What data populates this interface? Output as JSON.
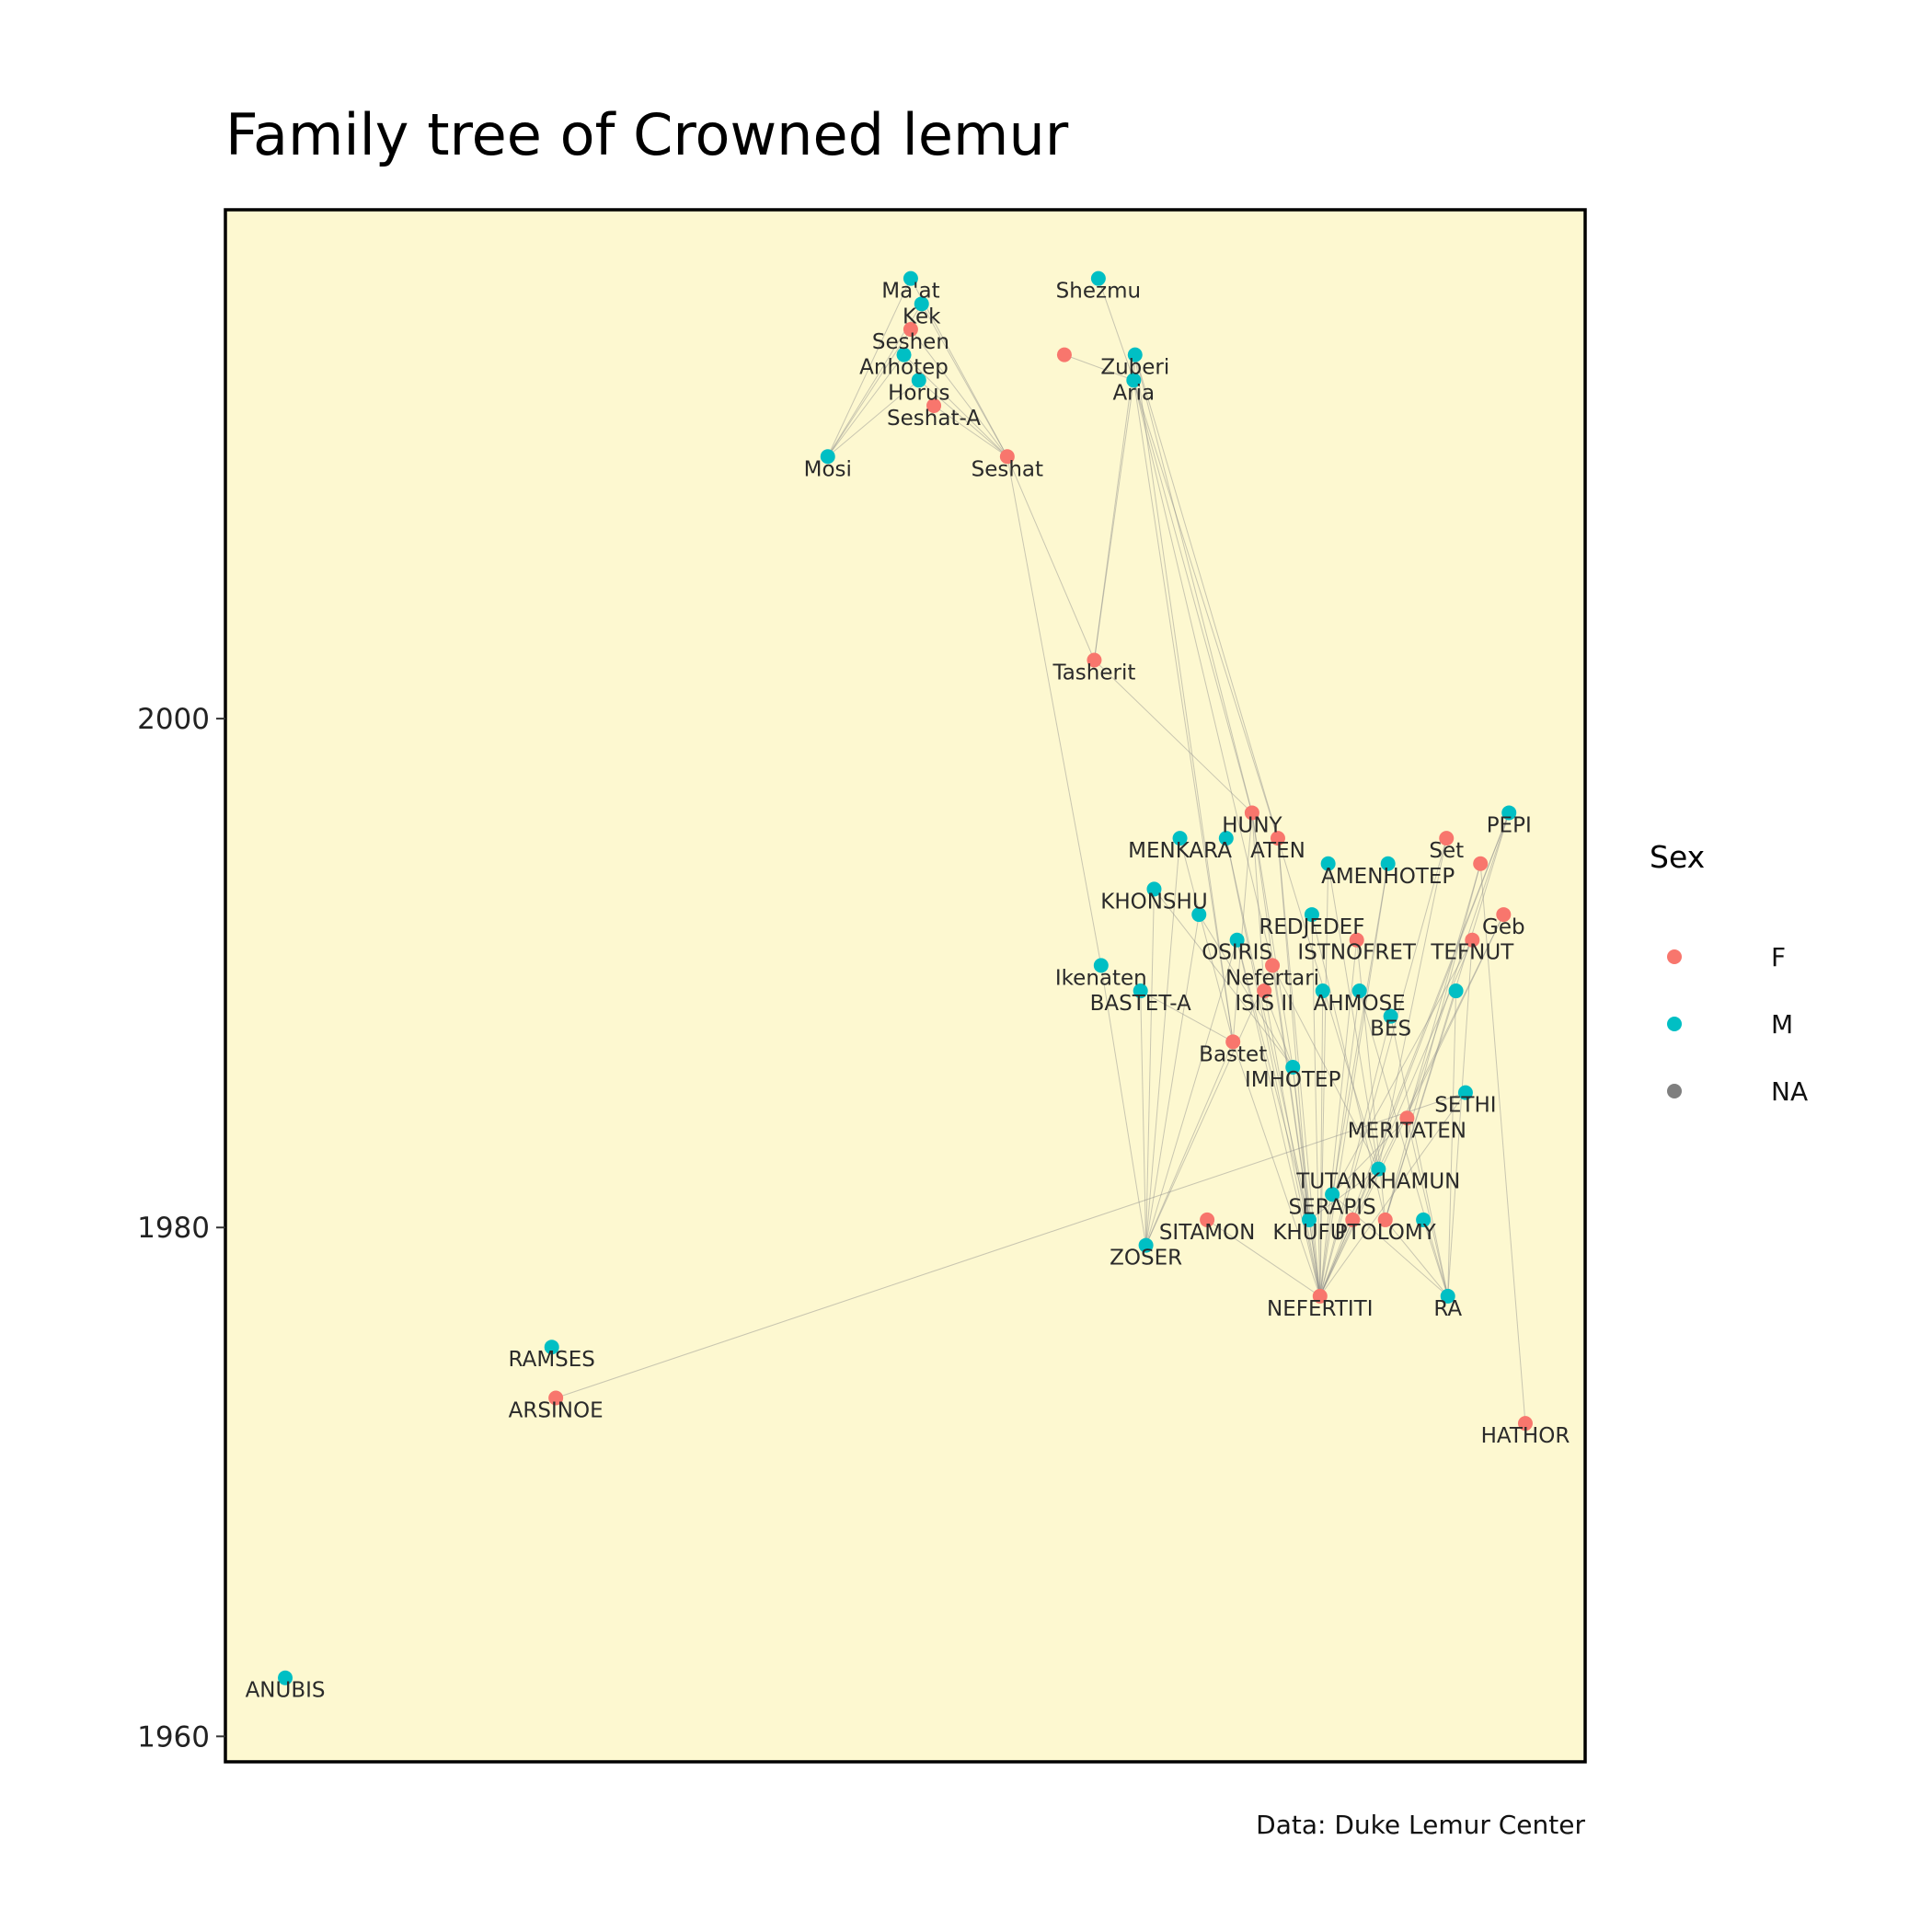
{
  "chart_data": {
    "type": "scatter",
    "title": "Family tree of Crowned lemur",
    "caption": "Data: Duke Lemur Center",
    "ylim": [
      1959,
      2020
    ],
    "xlim": [
      0,
      1
    ],
    "y_ticks": [
      1960,
      1980,
      2000
    ],
    "background": "#fdf8d0",
    "legend": {
      "title": "Sex",
      "placement": "right",
      "entries": [
        {
          "label": "F",
          "color": "#f8766d"
        },
        {
          "label": "M",
          "color": "#00bfc4"
        },
        {
          "label": "NA",
          "color": "#7f7f7f"
        }
      ]
    },
    "nodes": [
      {
        "name": "Ma'at",
        "sex": "M",
        "x": 0.504,
        "y": 2017.3
      },
      {
        "name": "Kek",
        "sex": "M",
        "x": 0.512,
        "y": 2016.3
      },
      {
        "name": "Seshen",
        "sex": "F",
        "x": 0.504,
        "y": 2015.3
      },
      {
        "name": "Anhotep",
        "sex": "M",
        "x": 0.499,
        "y": 2014.3
      },
      {
        "name": "Horus",
        "sex": "M",
        "x": 0.51,
        "y": 2013.3
      },
      {
        "name": "Seshat-A",
        "sex": "F",
        "x": 0.521,
        "y": 2012.3
      },
      {
        "name": "Mosi",
        "sex": "M",
        "x": 0.443,
        "y": 2010.3
      },
      {
        "name": "Seshat",
        "sex": "F",
        "x": 0.575,
        "y": 2010.3
      },
      {
        "name": "Shezmu",
        "sex": "M",
        "x": 0.642,
        "y": 2017.3
      },
      {
        "name": "",
        "sex": "F",
        "x": 0.617,
        "y": 2014.3
      },
      {
        "name": "Zuberi",
        "sex": "M",
        "x": 0.669,
        "y": 2014.3
      },
      {
        "name": "Aria",
        "sex": "M",
        "x": 0.668,
        "y": 2013.3
      },
      {
        "name": "Tasherit",
        "sex": "F",
        "x": 0.639,
        "y": 2002.3
      },
      {
        "name": "HUNY",
        "sex": "F",
        "x": 0.755,
        "y": 1996.3
      },
      {
        "name": "MENKARA",
        "sex": "M",
        "x": 0.702,
        "y": 1995.3
      },
      {
        "name": "ATEN",
        "sex": "F",
        "x": 0.774,
        "y": 1995.3
      },
      {
        "name": "",
        "sex": "M",
        "x": 0.736,
        "y": 1995.3
      },
      {
        "name": "PEPI",
        "sex": "M",
        "x": 0.944,
        "y": 1996.3
      },
      {
        "name": "Set",
        "sex": "F",
        "x": 0.898,
        "y": 1995.3
      },
      {
        "name": "",
        "sex": "F",
        "x": 0.923,
        "y": 1994.3
      },
      {
        "name": "AMENHOTEP",
        "sex": "M",
        "x": 0.855,
        "y": 1994.3
      },
      {
        "name": "",
        "sex": "M",
        "x": 0.811,
        "y": 1994.3
      },
      {
        "name": "KHONSHU",
        "sex": "M",
        "x": 0.683,
        "y": 1993.3
      },
      {
        "name": "",
        "sex": "M",
        "x": 0.716,
        "y": 1992.3
      },
      {
        "name": "REDJEDEF",
        "sex": "M",
        "x": 0.799,
        "y": 1992.3
      },
      {
        "name": "Geb",
        "sex": "F",
        "x": 0.94,
        "y": 1992.3
      },
      {
        "name": "OSIRIS",
        "sex": "M",
        "x": 0.744,
        "y": 1991.3
      },
      {
        "name": "ISTNOFRET",
        "sex": "F",
        "x": 0.832,
        "y": 1991.3
      },
      {
        "name": "TEFNUT",
        "sex": "F",
        "x": 0.917,
        "y": 1991.3
      },
      {
        "name": "Nefertari",
        "sex": "F",
        "x": 0.77,
        "y": 1990.3
      },
      {
        "name": "Ikenaten",
        "sex": "M",
        "x": 0.644,
        "y": 1990.3
      },
      {
        "name": "BASTET-A",
        "sex": "M",
        "x": 0.673,
        "y": 1989.3
      },
      {
        "name": "ISIS II",
        "sex": "F",
        "x": 0.764,
        "y": 1989.3
      },
      {
        "name": "AHMOSE",
        "sex": "M",
        "x": 0.834,
        "y": 1989.3
      },
      {
        "name": "",
        "sex": "M",
        "x": 0.807,
        "y": 1989.3
      },
      {
        "name": "",
        "sex": "M",
        "x": 0.905,
        "y": 1989.3
      },
      {
        "name": "BES",
        "sex": "M",
        "x": 0.857,
        "y": 1988.3
      },
      {
        "name": "Bastet",
        "sex": "F",
        "x": 0.741,
        "y": 1987.3
      },
      {
        "name": "IMHOTEP",
        "sex": "M",
        "x": 0.785,
        "y": 1986.3
      },
      {
        "name": "SETHI",
        "sex": "M",
        "x": 0.912,
        "y": 1985.3
      },
      {
        "name": "MERITATEN",
        "sex": "F",
        "x": 0.869,
        "y": 1984.3
      },
      {
        "name": "TUTANKHAMUN",
        "sex": "M",
        "x": 0.848,
        "y": 1982.3
      },
      {
        "name": "SERAPIS",
        "sex": "M",
        "x": 0.814,
        "y": 1981.3
      },
      {
        "name": "SITAMON",
        "sex": "F",
        "x": 0.722,
        "y": 1980.3
      },
      {
        "name": "KHUFU",
        "sex": "M",
        "x": 0.797,
        "y": 1980.3
      },
      {
        "name": "",
        "sex": "F",
        "x": 0.829,
        "y": 1980.3
      },
      {
        "name": "PTOLOMY",
        "sex": "F",
        "x": 0.853,
        "y": 1980.3
      },
      {
        "name": "",
        "sex": "M",
        "x": 0.881,
        "y": 1980.3
      },
      {
        "name": "ZOSER",
        "sex": "M",
        "x": 0.677,
        "y": 1979.3
      },
      {
        "name": "NEFERTITI",
        "sex": "F",
        "x": 0.805,
        "y": 1977.3
      },
      {
        "name": "RA",
        "sex": "M",
        "x": 0.899,
        "y": 1977.3
      },
      {
        "name": "RAMSES",
        "sex": "M",
        "x": 0.24,
        "y": 1975.3
      },
      {
        "name": "ARSINOE",
        "sex": "F",
        "x": 0.243,
        "y": 1973.3
      },
      {
        "name": "HATHOR",
        "sex": "F",
        "x": 0.956,
        "y": 1972.3
      },
      {
        "name": "ANUBIS",
        "sex": "M",
        "x": 0.044,
        "y": 1962.3
      }
    ],
    "edges": [
      [
        0,
        6
      ],
      [
        1,
        6
      ],
      [
        2,
        6
      ],
      [
        3,
        6
      ],
      [
        4,
        6
      ],
      [
        0,
        7
      ],
      [
        1,
        7
      ],
      [
        2,
        7
      ],
      [
        3,
        7
      ],
      [
        5,
        7
      ],
      [
        4,
        7
      ],
      [
        8,
        11
      ],
      [
        10,
        11
      ],
      [
        9,
        11
      ],
      [
        11,
        12
      ],
      [
        10,
        12
      ],
      [
        7,
        12
      ],
      [
        7,
        30
      ],
      [
        10,
        13
      ],
      [
        11,
        13
      ],
      [
        10,
        15
      ],
      [
        11,
        15
      ],
      [
        10,
        37
      ],
      [
        11,
        37
      ],
      [
        11,
        29
      ],
      [
        12,
        13
      ],
      [
        13,
        37
      ],
      [
        13,
        38
      ],
      [
        13,
        32
      ],
      [
        14,
        48
      ],
      [
        14,
        37
      ],
      [
        22,
        48
      ],
      [
        22,
        38
      ],
      [
        16,
        49
      ],
      [
        16,
        44
      ],
      [
        15,
        49
      ],
      [
        15,
        41
      ],
      [
        17,
        49
      ],
      [
        17,
        45
      ],
      [
        17,
        40
      ],
      [
        17,
        46
      ],
      [
        18,
        49
      ],
      [
        18,
        41
      ],
      [
        19,
        40
      ],
      [
        19,
        46
      ],
      [
        20,
        49
      ],
      [
        20,
        42
      ],
      [
        21,
        49
      ],
      [
        21,
        41
      ],
      [
        23,
        48
      ],
      [
        23,
        38
      ],
      [
        24,
        49
      ],
      [
        24,
        46
      ],
      [
        25,
        49
      ],
      [
        25,
        41
      ],
      [
        26,
        48
      ],
      [
        26,
        44
      ],
      [
        27,
        49
      ],
      [
        27,
        46
      ],
      [
        28,
        42
      ],
      [
        28,
        50
      ],
      [
        28,
        49
      ],
      [
        26,
        49
      ],
      [
        13,
        49
      ],
      [
        15,
        44
      ],
      [
        29,
        48
      ],
      [
        29,
        44
      ],
      [
        29,
        41
      ],
      [
        32,
        49
      ],
      [
        32,
        38
      ],
      [
        30,
        48
      ],
      [
        31,
        48
      ],
      [
        31,
        37
      ],
      [
        33,
        49
      ],
      [
        33,
        50
      ],
      [
        34,
        49
      ],
      [
        35,
        50
      ],
      [
        35,
        46
      ],
      [
        36,
        50
      ],
      [
        36,
        49
      ],
      [
        37,
        48
      ],
      [
        37,
        49
      ],
      [
        38,
        49
      ],
      [
        38,
        44
      ],
      [
        39,
        49
      ],
      [
        39,
        52
      ],
      [
        40,
        50
      ],
      [
        40,
        42
      ],
      [
        41,
        44
      ],
      [
        41,
        49
      ],
      [
        42,
        50
      ],
      [
        43,
        49
      ],
      [
        44,
        49
      ],
      [
        45,
        49
      ],
      [
        46,
        50
      ],
      [
        47,
        50
      ],
      [
        19,
        53
      ]
    ]
  }
}
